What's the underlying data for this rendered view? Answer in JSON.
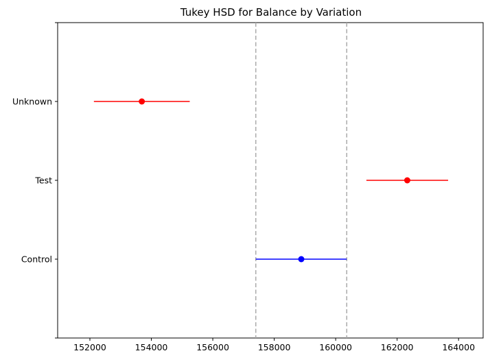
{
  "chart_data": {
    "type": "scatter",
    "title": "Tukey HSD for Balance by Variation",
    "xlabel": "",
    "ylabel": "",
    "xlim": [
      150950,
      164800
    ],
    "x_ticks": [
      152000,
      154000,
      156000,
      158000,
      160000,
      162000,
      164000
    ],
    "x_tick_labels": [
      "152000",
      "154000",
      "156000",
      "158000",
      "160000",
      "162000",
      "164000"
    ],
    "categories": [
      "Control",
      "Test",
      "Unknown"
    ],
    "groups": [
      {
        "name": "Control",
        "mean": 158880,
        "lower": 157400,
        "upper": 160360,
        "color": "#0000ff"
      },
      {
        "name": "Test",
        "mean": 162330,
        "lower": 161000,
        "upper": 163660,
        "color": "#ff0000"
      },
      {
        "name": "Unknown",
        "mean": 153690,
        "lower": 152130,
        "upper": 155250,
        "color": "#ff0000"
      }
    ],
    "reference_lines": [
      {
        "x": 157400,
        "style": "dashed",
        "color": "#aaaaaa"
      },
      {
        "x": 160360,
        "style": "dashed",
        "color": "#aaaaaa"
      }
    ],
    "grid": false,
    "legend": "none"
  }
}
